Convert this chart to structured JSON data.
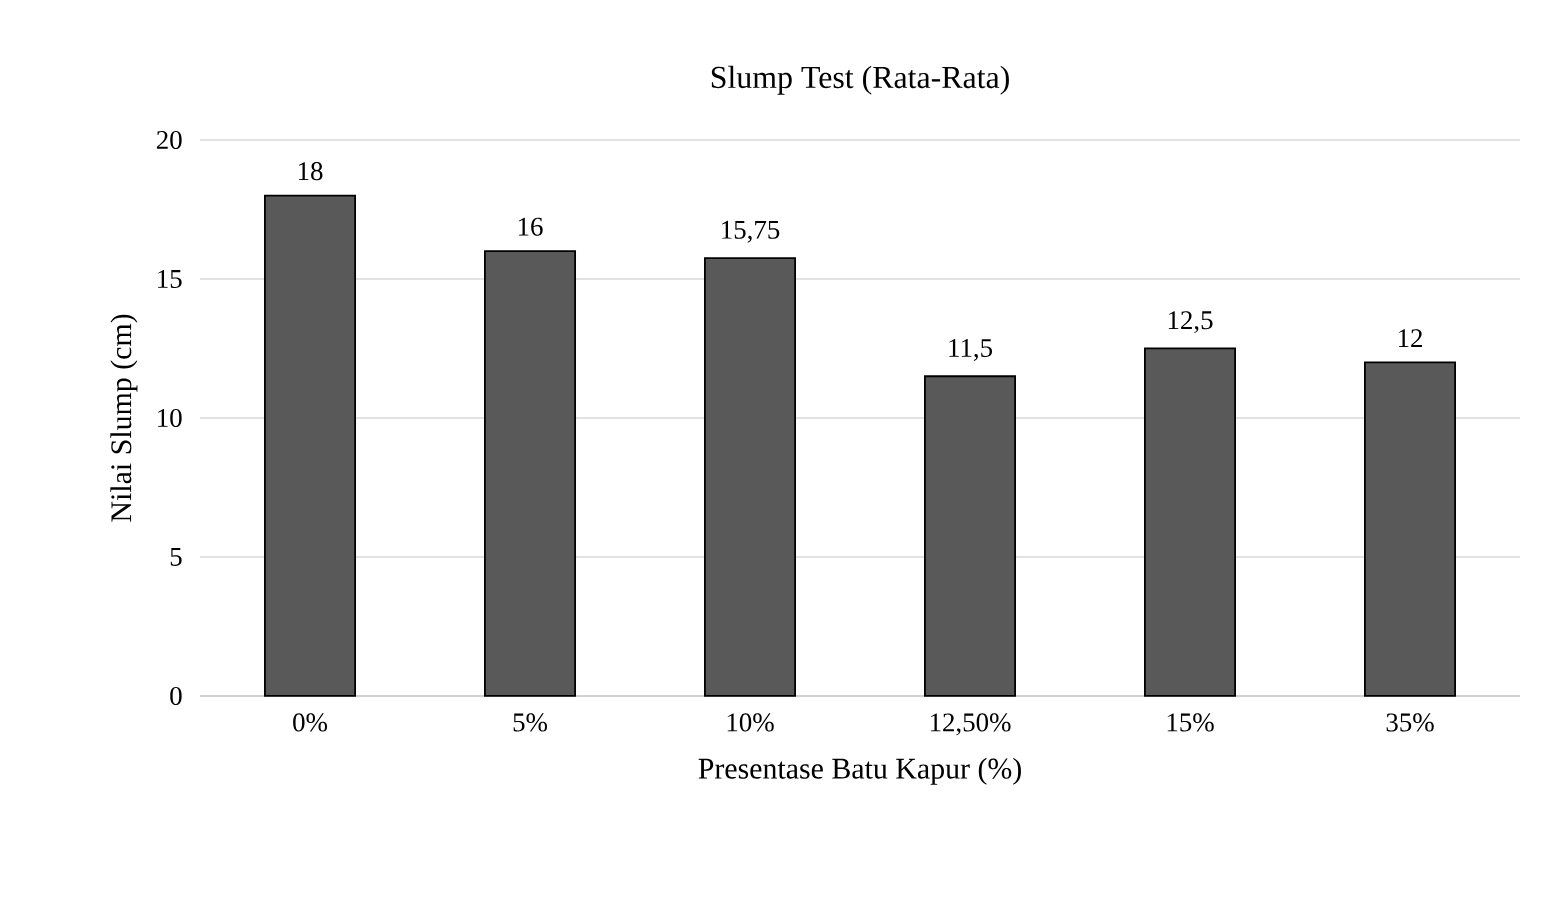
{
  "chart_data": {
    "type": "bar",
    "title": "Slump Test (Rata-Rata)",
    "xlabel": "Presentase Batu Kapur (%)",
    "ylabel": "Nilai Slump (cm)",
    "categories": [
      "0%",
      "5%",
      "10%",
      "12,50%",
      "15%",
      "35%"
    ],
    "values": [
      18,
      16,
      15.75,
      11.5,
      12.5,
      12
    ],
    "value_labels": [
      "18",
      "16",
      "15,75",
      "11,5",
      "12,5",
      "12"
    ],
    "color": "#595959",
    "ylim": [
      0,
      20
    ],
    "yticks": [
      0,
      5,
      10,
      15,
      20
    ],
    "grid": "y"
  }
}
